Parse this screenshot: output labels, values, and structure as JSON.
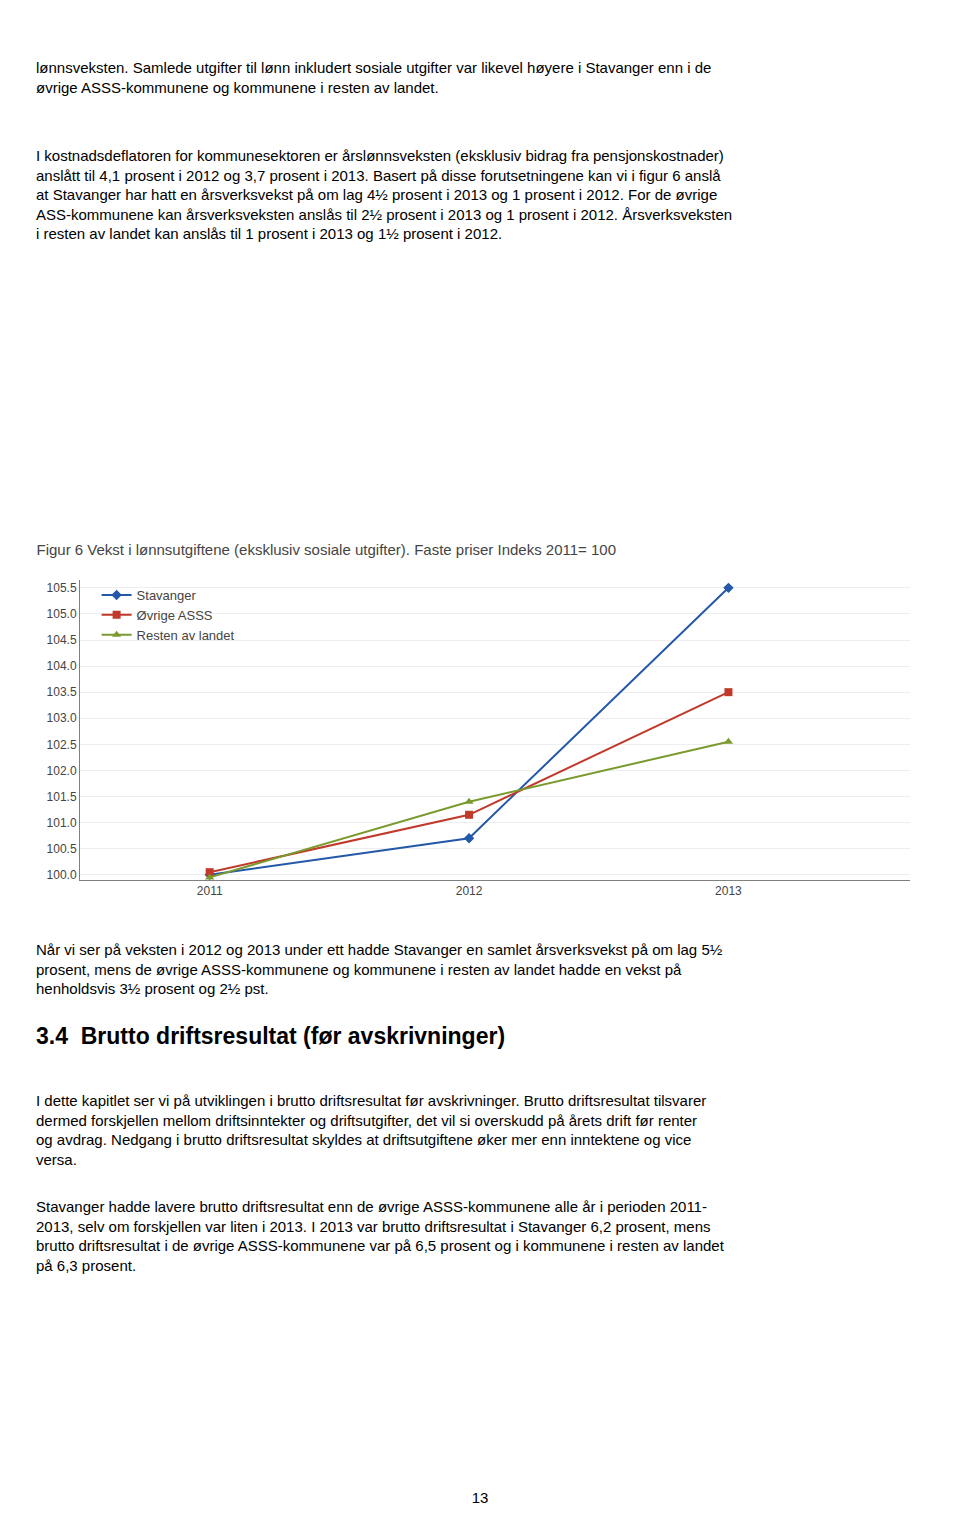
{
  "chart_data": {
    "type": "line",
    "title": "Figur 6 Vekst i lønnsutgiftene (eksklusiv sosiale utgifter). Faste priser Indeks 2011= 100",
    "x": [
      2011,
      2012,
      2013
    ],
    "series": [
      {
        "name": "Stavanger",
        "color": "#2458A8",
        "marker": "diamond",
        "values": [
          100.0,
          100.7,
          105.5
        ]
      },
      {
        "name": "Øvrige ASSS",
        "color": "#C0392B",
        "marker": "square",
        "values": [
          100.05,
          101.15,
          103.5
        ]
      },
      {
        "name": "Resten av landet",
        "color": "#7A9A2E",
        "marker": "triangle-up",
        "values": [
          99.95,
          101.4,
          102.55
        ]
      }
    ],
    "xlim": [
      2010.5,
      2013.7
    ],
    "xticks": [
      2011,
      2012,
      2013
    ],
    "ylim": [
      99.9,
      105.65
    ],
    "yticks": [
      {
        "value": 100.0,
        "label": "100.0"
      },
      {
        "value": 100.5,
        "label": "100.5"
      },
      {
        "value": 101.0,
        "label": "101.0"
      },
      {
        "value": 101.5,
        "label": "101.5"
      },
      {
        "value": 102.0,
        "label": "102.0"
      },
      {
        "value": 102.5,
        "label": "102.5"
      },
      {
        "value": 103.0,
        "label": "103.0"
      },
      {
        "value": 103.5,
        "label": "103.5"
      },
      {
        "value": 104.0,
        "label": "104.0"
      },
      {
        "value": 104.5,
        "label": "104.5"
      },
      {
        "value": 105.0,
        "label": "105.0"
      },
      {
        "value": 105.5,
        "label": "105.5"
      }
    ],
    "grid": true,
    "legend": "upper left",
    "annotations": [
      "lønnsveksten. Samlede utgifter til lønn inkludert sosiale utgifter var likevel høyere i Stavanger enn i de\nøvrige ASSS-kommunene og kommunene i resten av landet.",
      "I kostnadsdeflatoren for kommunesektoren er årslønnsveksten (eksklusiv bidrag fra pensjonskostnader)\nanslått til 4,1 prosent i 2012 og 3,7 prosent i 2013. Basert på disse forutsetningene kan vi i figur 6 anslå\nat Stavanger har hatt en årsverksvekst på om lag 4½ prosent i 2013 og 1 prosent i 2012. For de øvrige\nASS-kommunene kan årsverksveksten anslås til 2½ prosent i 2013 og 1 prosent i 2012. Årsverksveksten\ni resten av landet kan anslås til 1 prosent i 2013 og 1½ prosent i 2012.",
      "Når vi ser på veksten i 2012 og 2013 under ett hadde Stavanger en samlet årsverksvekst på om lag 5½\nprosent, mens de øvrige ASSS-kommunene og kommunene i resten av landet hadde en vekst på\nhenholdsvis 3½ prosent og 2½ pst.",
      "3.4  Brutto driftsresultat (før avskrivninger)",
      "I dette kapitlet ser vi på utviklingen i brutto driftsresultat før avskrivninger. Brutto driftsresultat tilsvarer\ndermed forskjellen mellom driftsinntekter og driftsutgifter, det vil si overskudd på årets drift før renter\nog avdrag. Nedgang i brutto driftsresultat skyldes at driftsutgiftene øker mer enn inntektene og vice\nversa.",
      "Stavanger hadde lavere brutto driftsresultat enn de øvrige ASSS-kommunene alle år i perioden 2011-\n2013, selv om forskjellen var liten i 2013. I 2013 var brutto driftsresultat i Stavanger 6,2 prosent, mens\nbrutto driftsresultat i de øvrige ASSS-kommunene var på 6,5 prosent og i kommunene i resten av landet\npå 6,3 prosent.",
      "13"
    ]
  }
}
